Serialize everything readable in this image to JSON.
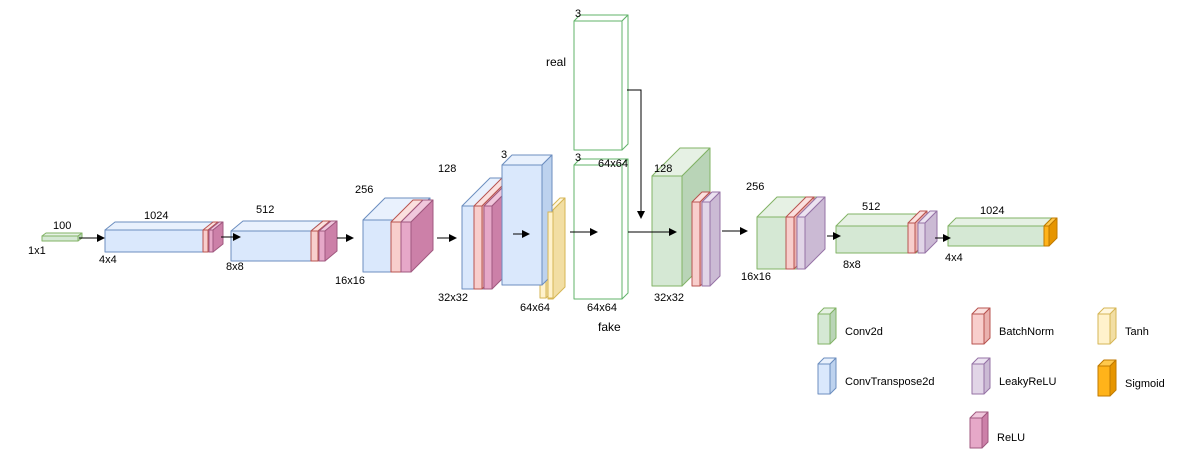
{
  "colors": {
    "conv2d": {
      "front": "#d5e8d4",
      "side": "#b9d4b7",
      "top": "#e6f1e4",
      "stroke": "#82b366"
    },
    "convtranspose2d": {
      "front": "#dae8fc",
      "side": "#bdd2ee",
      "top": "#e9f1fd",
      "stroke": "#6c8ebf"
    },
    "batchnorm": {
      "front": "#f8cecc",
      "side": "#eab1ae",
      "top": "#fbe0de",
      "stroke": "#b85450"
    },
    "leakyrelu": {
      "front": "#e1d5e7",
      "side": "#cbbad4",
      "top": "#ece3f1",
      "stroke": "#9673a6"
    },
    "relu": {
      "front": "#e6a8c8",
      "side": "#cc80a8",
      "top": "#f0c7dc",
      "stroke": "#a0587f"
    },
    "tanh": {
      "front": "#fff2cc",
      "side": "#f2dea3",
      "top": "#fff7df",
      "stroke": "#d6b656"
    },
    "sigmoid": {
      "front": "#ffb31a",
      "side": "#e69500",
      "top": "#ffc94d",
      "stroke": "#c07a00"
    },
    "image": {
      "front": "#ffffff",
      "side": "#ffffff",
      "top": "#ffffff",
      "stroke": "#62b36a"
    },
    "arrow": "#000000"
  },
  "generator": {
    "input": {
      "channels": "100",
      "size": "1x1"
    },
    "layers": [
      {
        "channels": "1024",
        "size": "4x4",
        "type": "convtranspose2d",
        "post": [
          "batchnorm",
          "relu"
        ]
      },
      {
        "channels": "512",
        "size": "8x8",
        "type": "convtranspose2d",
        "post": [
          "batchnorm",
          "relu"
        ]
      },
      {
        "channels": "256",
        "size": "16x16",
        "type": "convtranspose2d",
        "post": [
          "batchnorm",
          "relu"
        ]
      },
      {
        "channels": "128",
        "size": "32x32",
        "type": "convtranspose2d",
        "post": [
          "batchnorm",
          "relu"
        ]
      },
      {
        "channels": "3",
        "size": "64x64",
        "type": "convtranspose2d",
        "post": [
          "tanh"
        ]
      }
    ]
  },
  "images": {
    "real": {
      "label": "real",
      "channels": "3",
      "size": "64x64"
    },
    "fake": {
      "label": "fake",
      "channels": "3",
      "size": "64x64"
    }
  },
  "discriminator": {
    "layers": [
      {
        "channels": "128",
        "size": "32x32",
        "type": "conv2d",
        "post": [
          "batchnorm",
          "leakyrelu"
        ]
      },
      {
        "channels": "256",
        "size": "16x16",
        "type": "conv2d",
        "post": [
          "batchnorm",
          "leakyrelu"
        ]
      },
      {
        "channels": "512",
        "size": "8x8",
        "type": "conv2d",
        "post": [
          "batchnorm",
          "leakyrelu"
        ]
      },
      {
        "channels": "1024",
        "size": "4x4",
        "type": "conv2d",
        "post": [
          "sigmoid"
        ]
      }
    ]
  },
  "legend": [
    {
      "key": "conv2d",
      "label": "Conv2d"
    },
    {
      "key": "convtranspose2d",
      "label": "ConvTranspose2d"
    },
    {
      "key": "batchnorm",
      "label": "BatchNorm"
    },
    {
      "key": "leakyrelu",
      "label": "LeakyReLU"
    },
    {
      "key": "relu",
      "label": "ReLU"
    },
    {
      "key": "tanh",
      "label": "Tanh"
    },
    {
      "key": "sigmoid",
      "label": "Sigmoid"
    }
  ]
}
